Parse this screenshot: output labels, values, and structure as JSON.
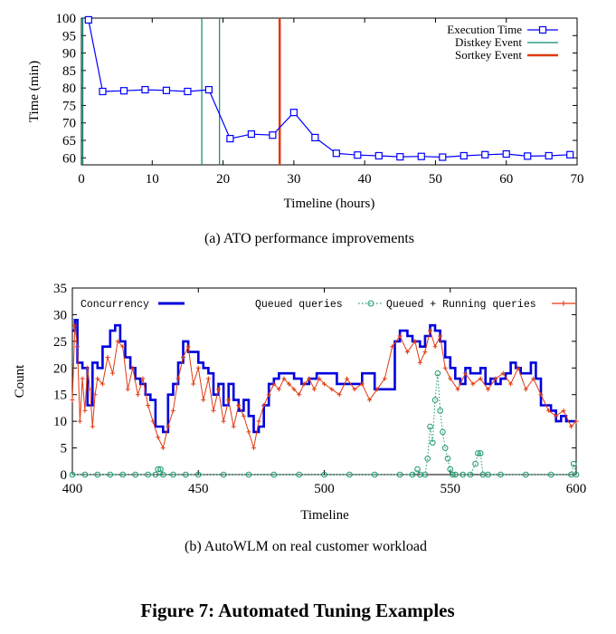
{
  "figure": {
    "caption": "Figure 7: Automated Tuning Examples"
  },
  "chart_data": [
    {
      "id": "a",
      "type": "line",
      "subcaption": "(a)  ATO performance improvements",
      "xlabel": "Timeline (hours)",
      "ylabel": "Time (min)",
      "xlim": [
        0,
        70
      ],
      "ylim": [
        58,
        100
      ],
      "xticks": [
        0,
        10,
        20,
        30,
        40,
        50,
        60,
        70
      ],
      "yticks": [
        60,
        65,
        70,
        75,
        80,
        85,
        90,
        95,
        100
      ],
      "grid": false,
      "legend_position": "top-right",
      "series": [
        {
          "name": "Execution Time",
          "color": "#0000ff",
          "marker": "open-square",
          "x": [
            1,
            3,
            6,
            9,
            12,
            15,
            18,
            21,
            24,
            27,
            30,
            33,
            36,
            39,
            42,
            45,
            48,
            51,
            54,
            57,
            60,
            63,
            66,
            69
          ],
          "y": [
            99.5,
            79,
            79.2,
            79.5,
            79.3,
            79,
            79.5,
            65.5,
            66.8,
            66.5,
            73,
            65.8,
            61.3,
            60.8,
            60.6,
            60.3,
            60.4,
            60.2,
            60.6,
            60.9,
            61.1,
            60.5,
            60.6,
            60.9
          ]
        }
      ],
      "events": [
        {
          "name": "Distkey Event",
          "color": "#0a8a6e",
          "x": [
            0.2,
            17,
            19.5
          ]
        },
        {
          "name": "Sortkey Event",
          "color": "#e03a10",
          "x": [
            28
          ]
        }
      ]
    },
    {
      "id": "b",
      "type": "line",
      "subcaption": "(b)  AutoWLM on real customer workload",
      "xlabel": "Timeline",
      "ylabel": "Count",
      "xlim": [
        400,
        600
      ],
      "ylim": [
        0,
        35
      ],
      "xticks": [
        400,
        450,
        500,
        550,
        600
      ],
      "yticks": [
        0,
        5,
        10,
        15,
        20,
        25,
        30,
        35
      ],
      "grid": false,
      "legend_position": "top",
      "series": [
        {
          "name": "Concurrency",
          "color": "#0000dd",
          "style": "step",
          "x": [
            400,
            401,
            402,
            404,
            406,
            408,
            410,
            412,
            415,
            417,
            419,
            421,
            423,
            425,
            427,
            429,
            431,
            433,
            436,
            438,
            440,
            442,
            444,
            446,
            448,
            450,
            452,
            454,
            456,
            458,
            460,
            462,
            464,
            466,
            468,
            470,
            472,
            474,
            476,
            478,
            480,
            482,
            485,
            488,
            491,
            494,
            497,
            500,
            505,
            510,
            515,
            520,
            525,
            528,
            530,
            533,
            535,
            538,
            540,
            542,
            544,
            546,
            548,
            550,
            552,
            554,
            556,
            558,
            560,
            562,
            564,
            566,
            568,
            570,
            572,
            574,
            576,
            578,
            580,
            582,
            584,
            586,
            588,
            590,
            592,
            594,
            596,
            598,
            600
          ],
          "y": [
            27,
            29,
            21,
            20,
            13,
            21,
            20,
            24,
            27,
            28,
            25,
            22,
            20,
            18,
            17,
            15,
            14,
            9,
            8,
            15,
            17,
            21,
            25,
            23,
            23,
            21,
            20,
            19,
            15,
            17,
            13,
            17,
            14,
            12,
            14,
            11,
            8,
            9,
            13,
            17,
            18,
            19,
            19,
            18,
            17,
            18,
            19,
            19,
            17,
            17,
            19,
            16,
            16,
            25,
            27,
            26,
            25,
            24,
            26,
            28,
            27,
            25,
            22,
            20,
            18,
            17,
            20,
            19,
            19,
            20,
            17,
            18,
            17,
            18,
            19,
            21,
            20,
            19,
            19,
            21,
            18,
            13,
            13,
            12,
            10,
            11,
            10,
            10,
            10
          ]
        },
        {
          "name": "Queued queries",
          "color": "#1a9a6a",
          "marker": "open-circle",
          "style": "dotted",
          "x": [
            400,
            405,
            410,
            415,
            420,
            425,
            430,
            433,
            434,
            435,
            436,
            440,
            445,
            450,
            460,
            470,
            480,
            490,
            500,
            510,
            520,
            530,
            535,
            537,
            538,
            540,
            541,
            542,
            543,
            544,
            545,
            546,
            547,
            548,
            549,
            550,
            551,
            552,
            555,
            558,
            560,
            561,
            562,
            563,
            565,
            570,
            580,
            590,
            598,
            599,
            600
          ],
          "y": [
            0,
            0,
            0,
            0,
            0,
            0,
            0,
            0,
            1,
            1,
            0,
            0,
            0,
            0,
            0,
            0,
            0,
            0,
            0,
            0,
            0,
            0,
            0,
            1,
            0,
            0,
            3,
            9,
            6,
            14,
            19,
            12,
            8,
            5,
            3,
            1,
            0,
            0,
            0,
            0,
            2,
            4,
            4,
            0,
            0,
            0,
            0,
            0,
            0,
            2,
            0
          ]
        },
        {
          "name": "Queued + Running queries",
          "color": "#e03a10",
          "marker": "plus",
          "x": [
            400,
            401,
            402,
            403,
            404,
            405,
            406,
            407,
            408,
            409,
            410,
            412,
            414,
            416,
            418,
            420,
            422,
            424,
            426,
            428,
            430,
            432,
            434,
            436,
            438,
            440,
            442,
            444,
            446,
            448,
            450,
            452,
            454,
            456,
            458,
            460,
            462,
            464,
            466,
            468,
            470,
            472,
            474,
            476,
            478,
            480,
            482,
            484,
            486,
            488,
            490,
            492,
            494,
            496,
            498,
            500,
            503,
            506,
            509,
            512,
            515,
            518,
            521,
            524,
            527,
            530,
            533,
            536,
            538,
            540,
            542,
            544,
            546,
            548,
            550,
            553,
            556,
            559,
            562,
            565,
            568,
            571,
            574,
            577,
            580,
            583,
            586,
            589,
            592,
            595,
            598,
            600
          ],
          "y": [
            14,
            28,
            24,
            10,
            18,
            12,
            20,
            16,
            9,
            15,
            18,
            17,
            22,
            19,
            25,
            24,
            16,
            20,
            15,
            18,
            13,
            10,
            7,
            5,
            9,
            12,
            18,
            22,
            24,
            17,
            20,
            14,
            18,
            12,
            16,
            10,
            14,
            9,
            13,
            11,
            8,
            5,
            10,
            13,
            15,
            17,
            16,
            18,
            17,
            16,
            15,
            17,
            18,
            16,
            18,
            17,
            16,
            15,
            18,
            16,
            17,
            14,
            16,
            18,
            24,
            26,
            23,
            25,
            21,
            23,
            27,
            24,
            26,
            20,
            18,
            16,
            19,
            17,
            18,
            16,
            18,
            19,
            17,
            20,
            16,
            18,
            15,
            12,
            11,
            12,
            9,
            10
          ]
        }
      ]
    }
  ]
}
